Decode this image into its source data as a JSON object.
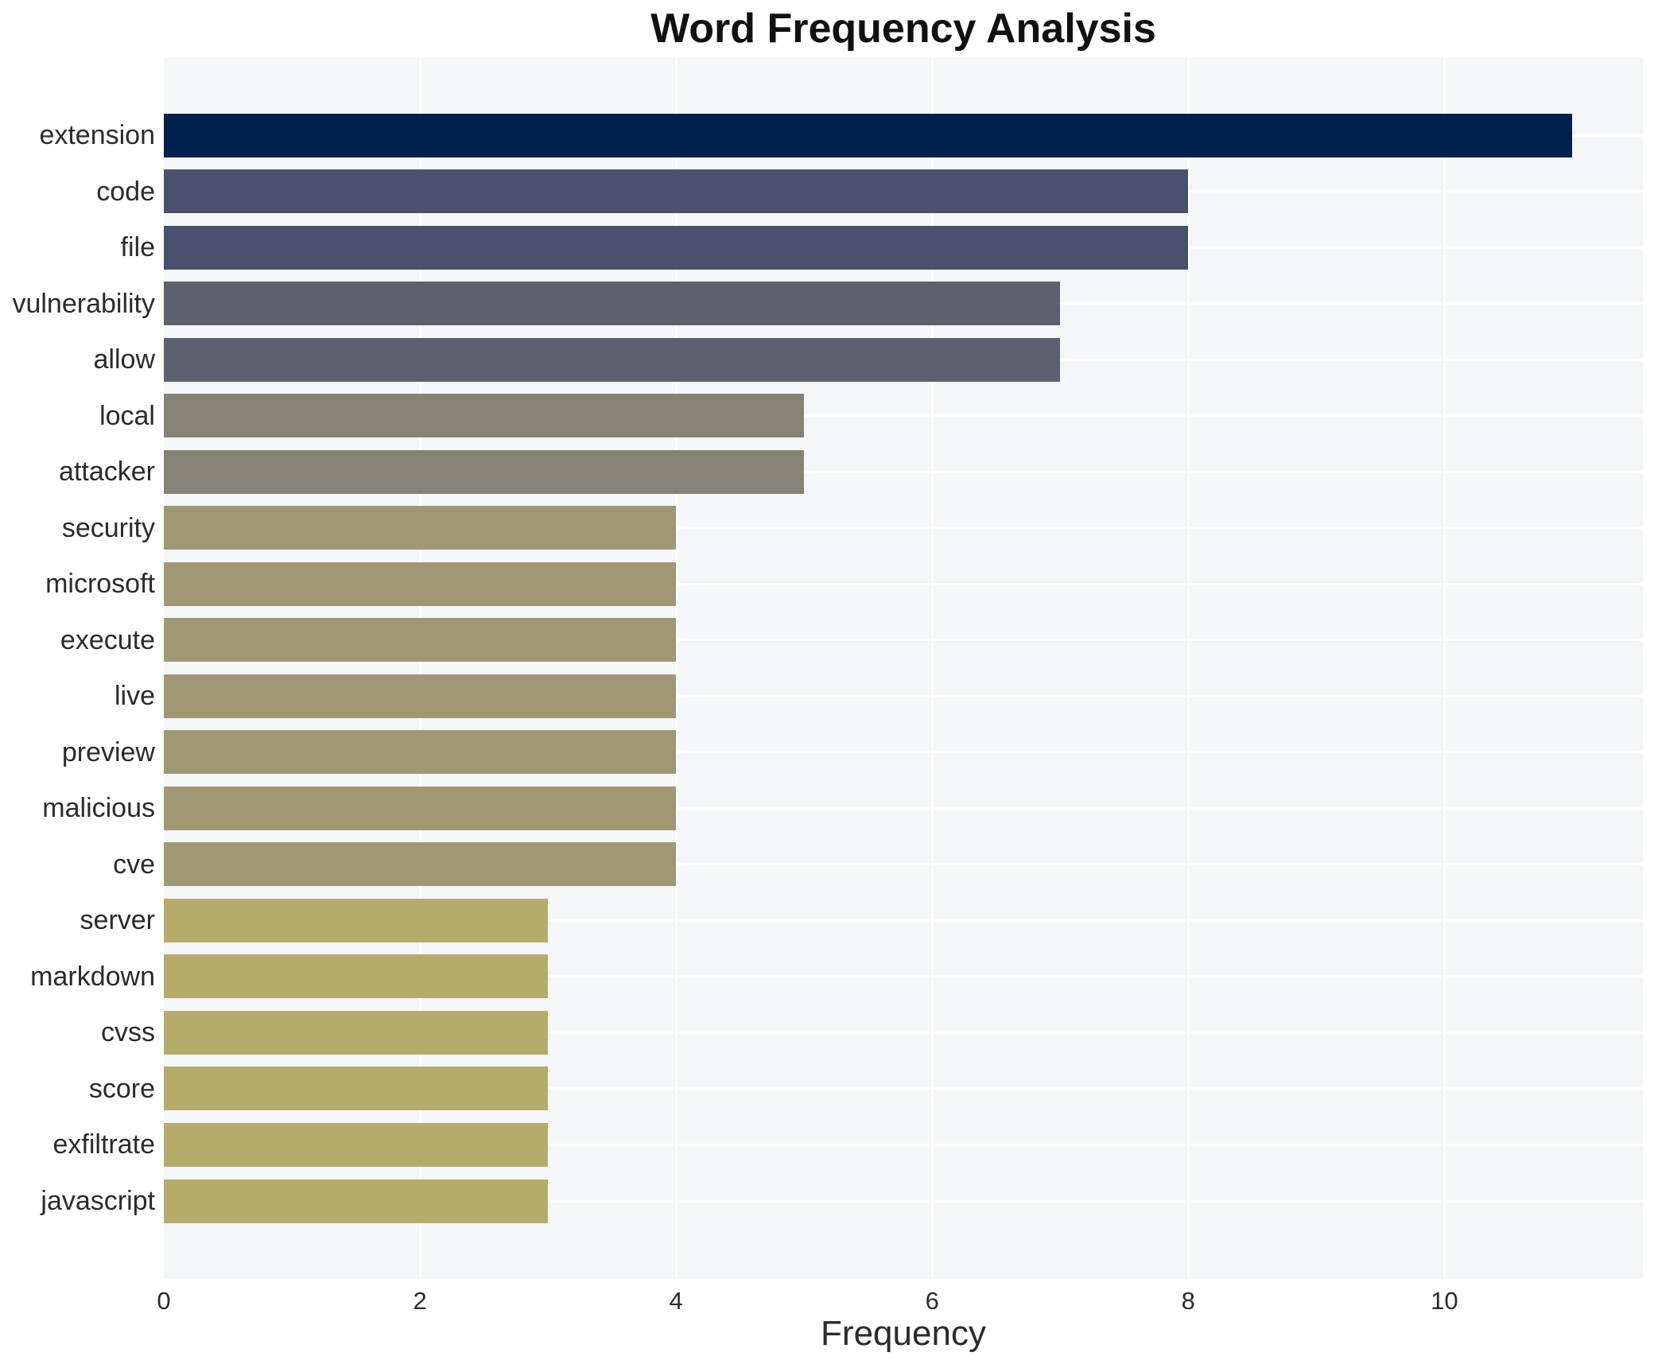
{
  "chart_data": {
    "type": "bar",
    "orientation": "horizontal",
    "title": "Word Frequency Analysis",
    "xlabel": "Frequency",
    "ylabel": "",
    "categories": [
      "extension",
      "code",
      "file",
      "vulnerability",
      "allow",
      "local",
      "attacker",
      "security",
      "microsoft",
      "execute",
      "live",
      "preview",
      "malicious",
      "cve",
      "server",
      "markdown",
      "cvss",
      "score",
      "exfiltrate",
      "javascript"
    ],
    "values": [
      11,
      8,
      8,
      7,
      7,
      5,
      5,
      4,
      4,
      4,
      4,
      4,
      4,
      4,
      3,
      3,
      3,
      3,
      3,
      3
    ],
    "bar_colors": [
      "#00214d",
      "#49516e",
      "#49516e",
      "#5d616f",
      "#5d616f",
      "#858376",
      "#858376",
      "#a09875",
      "#a09875",
      "#a09875",
      "#a09875",
      "#a09875",
      "#a09875",
      "#a09875",
      "#b5ab6a",
      "#b5ab6a",
      "#b5ab6a",
      "#b5ab6a",
      "#b5ab6a",
      "#b5ab6a"
    ],
    "xticks": [
      0,
      2,
      4,
      6,
      8,
      10
    ],
    "xlim": [
      0,
      11.55
    ],
    "grid": true,
    "legend": false,
    "plot_background": "#f5f6f7",
    "gridline_color": "#ffffff"
  }
}
